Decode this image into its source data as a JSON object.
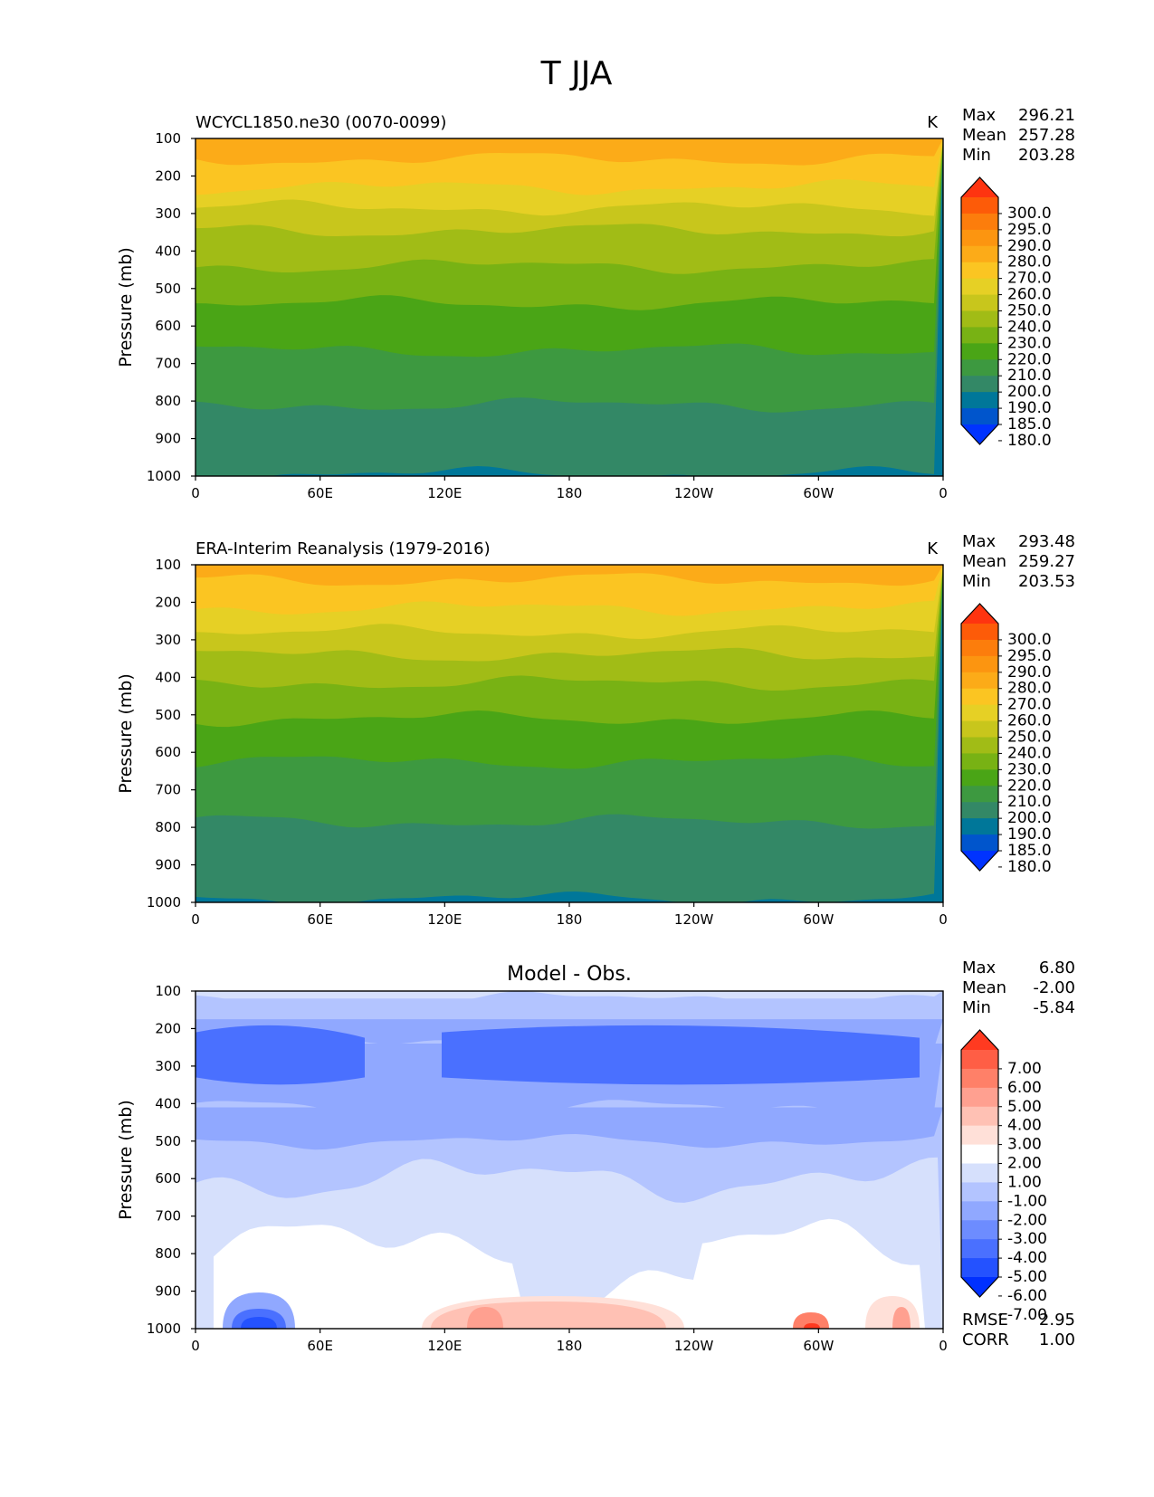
{
  "figure": {
    "title": "T JJA"
  },
  "colors": {
    "abs": [
      "#0033ff",
      "#0055cc",
      "#007799",
      "#338866",
      "#3d9940",
      "#4aa516",
      "#78b214",
      "#a1bc16",
      "#c8c61c",
      "#e6d025",
      "#fbc522",
      "#fcab18",
      "#fc9510",
      "#fc7d0c",
      "#fd5b08",
      "#fe3410"
    ],
    "diff": [
      "#0030ff",
      "#2452ff",
      "#4a70ff",
      "#6d8cff",
      "#90a8ff",
      "#b3c4ff",
      "#d6e0fc",
      "#ffffff",
      "#ffe0d8",
      "#ffc1b4",
      "#ffa090",
      "#ff8068",
      "#ff5e45",
      "#ff3a20"
    ]
  },
  "chart_data": [
    {
      "type": "contourf",
      "subtitle": "WCYCL1850.ne30 (0070-0099)",
      "units": "K",
      "ylabel": "Pressure (mb)",
      "xlabel": "",
      "x_ticks": [
        "0",
        "60E",
        "120E",
        "180",
        "120W",
        "60W",
        "0"
      ],
      "y_ticks": [
        "100",
        "200",
        "300",
        "400",
        "500",
        "600",
        "700",
        "800",
        "900",
        "1000"
      ],
      "ylim": [
        1000,
        100
      ],
      "xlim": [
        0,
        360
      ],
      "stats": [
        {
          "label": "Max",
          "value": "296.21"
        },
        {
          "label": "Mean",
          "value": "257.28"
        },
        {
          "label": "Min",
          "value": "203.28"
        }
      ],
      "colorbar": {
        "levels": [
          "300.0",
          "295.0",
          "290.0",
          "280.0",
          "270.0",
          "260.0",
          "250.0",
          "240.0",
          "230.0",
          "220.0",
          "210.0",
          "200.0",
          "190.0",
          "185.0",
          "180.0"
        ],
        "extend": "both"
      },
      "bands": [
        {
          "level_idx": 11,
          "pressures": [
            100,
            155
          ]
        },
        {
          "level_idx": 10,
          "pressures": [
            155,
            230
          ]
        },
        {
          "level_idx": 9,
          "pressures": [
            230,
            285
          ]
        },
        {
          "level_idx": 8,
          "pressures": [
            285,
            345
          ]
        },
        {
          "level_idx": 7,
          "pressures": [
            345,
            440
          ]
        },
        {
          "level_idx": 6,
          "pressures": [
            440,
            540
          ]
        },
        {
          "level_idx": 5,
          "pressures": [
            540,
            665
          ]
        },
        {
          "level_idx": 4,
          "pressures": [
            665,
            810
          ]
        },
        {
          "level_idx": 3,
          "pressures": [
            810,
            995
          ]
        },
        {
          "level_idx": 2,
          "pressures": [
            995,
            1000
          ]
        }
      ]
    },
    {
      "type": "contourf",
      "subtitle": "ERA-Interim Reanalysis (1979-2016)",
      "units": "K",
      "ylabel": "Pressure (mb)",
      "xlabel": "",
      "x_ticks": [
        "0",
        "60E",
        "120E",
        "180",
        "120W",
        "60W",
        "0"
      ],
      "y_ticks": [
        "100",
        "200",
        "300",
        "400",
        "500",
        "600",
        "700",
        "800",
        "900",
        "1000"
      ],
      "ylim": [
        1000,
        100
      ],
      "xlim": [
        0,
        360
      ],
      "stats": [
        {
          "label": "Max",
          "value": "293.48"
        },
        {
          "label": "Mean",
          "value": "259.27"
        },
        {
          "label": "Min",
          "value": "203.53"
        }
      ],
      "colorbar": {
        "levels": [
          "300.0",
          "295.0",
          "290.0",
          "280.0",
          "270.0",
          "260.0",
          "250.0",
          "240.0",
          "230.0",
          "220.0",
          "210.0",
          "200.0",
          "190.0",
          "185.0",
          "180.0"
        ],
        "extend": "both"
      },
      "bands": [
        {
          "level_idx": 11,
          "pressures": [
            100,
            140
          ]
        },
        {
          "level_idx": 10,
          "pressures": [
            140,
            215
          ]
        },
        {
          "level_idx": 9,
          "pressures": [
            215,
            280
          ]
        },
        {
          "level_idx": 8,
          "pressures": [
            280,
            340
          ]
        },
        {
          "level_idx": 7,
          "pressures": [
            340,
            415
          ]
        },
        {
          "level_idx": 6,
          "pressures": [
            415,
            510
          ]
        },
        {
          "level_idx": 5,
          "pressures": [
            510,
            625
          ]
        },
        {
          "level_idx": 4,
          "pressures": [
            625,
            785
          ]
        },
        {
          "level_idx": 3,
          "pressures": [
            785,
            990
          ]
        },
        {
          "level_idx": 2,
          "pressures": [
            990,
            1000
          ]
        }
      ]
    },
    {
      "type": "contourf",
      "subtitle": "Model - Obs.",
      "units": "",
      "ylabel": "Pressure (mb)",
      "xlabel": "",
      "x_ticks": [
        "0",
        "60E",
        "120E",
        "180",
        "120W",
        "60W",
        "0"
      ],
      "y_ticks": [
        "100",
        "200",
        "300",
        "400",
        "500",
        "600",
        "700",
        "800",
        "900",
        "1000"
      ],
      "ylim": [
        1000,
        100
      ],
      "xlim": [
        0,
        360
      ],
      "stats": [
        {
          "label": "Max",
          "value": "6.80"
        },
        {
          "label": "Mean",
          "value": "-2.00"
        },
        {
          "label": "Min",
          "value": "-5.84"
        }
      ],
      "colorbar": {
        "levels": [
          "7.00",
          "6.00",
          "5.00",
          "4.00",
          "3.00",
          "2.00",
          "1.00",
          "-1.00",
          "-2.00",
          "-3.00",
          "-4.00",
          "-5.00",
          "-6.00",
          "-7.00"
        ],
        "extend": "both"
      },
      "footer_stats": [
        {
          "label": "RMSE",
          "value": "2.95"
        },
        {
          "label": "CORR",
          "value": "1.00"
        }
      ]
    }
  ]
}
